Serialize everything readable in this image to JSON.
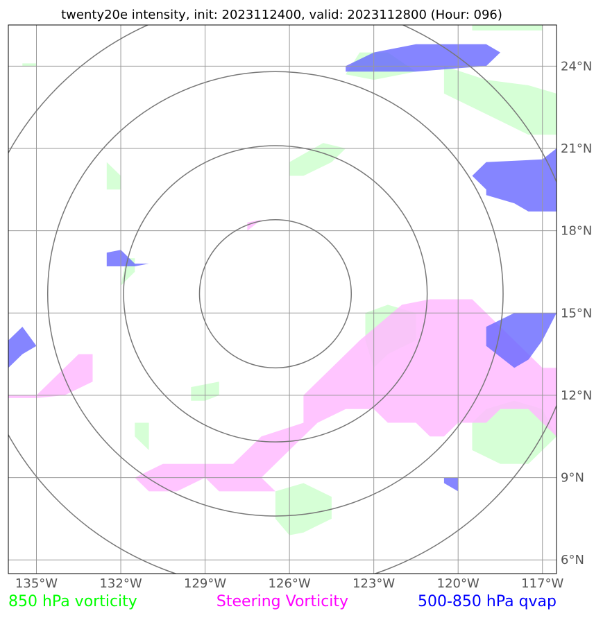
{
  "title": "twenty20e intensity, init: 2023112400, valid: 2023112800 (Hour: 096)",
  "map": {
    "lon_range": [
      -136,
      -116.5
    ],
    "lat_range": [
      5.5,
      25.5
    ],
    "center": {
      "lon": -126.5,
      "lat": 15.7
    },
    "lon_ticks": [
      {
        "value": -135,
        "label": "135°W"
      },
      {
        "value": -132,
        "label": "132°W"
      },
      {
        "value": -129,
        "label": "129°W"
      },
      {
        "value": -126,
        "label": "126°W"
      },
      {
        "value": -123,
        "label": "123°W"
      },
      {
        "value": -120,
        "label": "120°W"
      },
      {
        "value": -117,
        "label": "117°W"
      }
    ],
    "lat_ticks": [
      {
        "value": 24,
        "label": "24°N"
      },
      {
        "value": 21,
        "label": "21°N"
      },
      {
        "value": 18,
        "label": "18°N"
      },
      {
        "value": 15,
        "label": "15°N"
      },
      {
        "value": 12,
        "label": "12°N"
      },
      {
        "value": 9,
        "label": "9°N"
      },
      {
        "value": 6,
        "label": "6°N"
      }
    ],
    "range_ring_radius_deg": [
      2.7,
      5.4,
      8.1,
      10.8
    ]
  },
  "fields": {
    "vorticity_850": {
      "color": "#ccffcc",
      "polygons": [
        [
          [
            -135.5,
            24.1
          ],
          [
            -135.0,
            24.1
          ],
          [
            -135.0,
            24.0
          ],
          [
            -135.5,
            24.0
          ]
        ],
        [
          [
            -132.5,
            20.5
          ],
          [
            -132.0,
            20.0
          ],
          [
            -132.0,
            19.5
          ],
          [
            -132.5,
            19.5
          ]
        ],
        [
          [
            -131.5,
            17.0
          ],
          [
            -131.5,
            16.5
          ],
          [
            -132.0,
            16.0
          ],
          [
            -131.8,
            17.0
          ]
        ],
        [
          [
            -126.0,
            20.5
          ],
          [
            -124.8,
            21.2
          ],
          [
            -124.0,
            21.0
          ],
          [
            -124.5,
            20.5
          ],
          [
            -125.5,
            20.0
          ],
          [
            -126.0,
            20.0
          ]
        ],
        [
          [
            -123.3,
            15.0
          ],
          [
            -122.5,
            15.3
          ],
          [
            -121.5,
            15.0
          ],
          [
            -121.5,
            14.0
          ],
          [
            -122.5,
            13.5
          ],
          [
            -123.0,
            13.0
          ],
          [
            -123.3,
            14.0
          ]
        ],
        [
          [
            -129.5,
            12.3
          ],
          [
            -128.5,
            12.5
          ],
          [
            -128.5,
            12.0
          ],
          [
            -129.0,
            11.8
          ],
          [
            -129.5,
            11.8
          ]
        ],
        [
          [
            -131.5,
            11.0
          ],
          [
            -131.0,
            11.0
          ],
          [
            -131.0,
            10.0
          ],
          [
            -131.5,
            10.5
          ]
        ],
        [
          [
            -126.5,
            8.5
          ],
          [
            -125.5,
            8.8
          ],
          [
            -124.5,
            8.3
          ],
          [
            -124.5,
            7.5
          ],
          [
            -125.5,
            7.0
          ],
          [
            -126.0,
            6.9
          ],
          [
            -126.5,
            7.5
          ]
        ],
        [
          [
            -119.0,
            11.5
          ],
          [
            -118.0,
            11.8
          ],
          [
            -117.0,
            11.5
          ],
          [
            -116.5,
            10.5
          ],
          [
            -117.5,
            9.5
          ],
          [
            -118.5,
            9.5
          ],
          [
            -119.5,
            10.0
          ],
          [
            -119.5,
            11.0
          ]
        ],
        [
          [
            -123.5,
            24.5
          ],
          [
            -122.5,
            24.5
          ],
          [
            -121.5,
            23.8
          ],
          [
            -123.0,
            23.5
          ],
          [
            -124.0,
            23.7
          ]
        ],
        [
          [
            -120.5,
            24.0
          ],
          [
            -119.0,
            23.5
          ],
          [
            -117.5,
            23.3
          ],
          [
            -116.5,
            23.0
          ],
          [
            -116.5,
            21.5
          ],
          [
            -117.5,
            21.5
          ],
          [
            -118.5,
            22.0
          ],
          [
            -119.5,
            22.5
          ],
          [
            -120.5,
            23.0
          ]
        ],
        [
          [
            -119.5,
            25.5
          ],
          [
            -117.0,
            25.6
          ],
          [
            -117.0,
            25.3
          ],
          [
            -119.5,
            25.3
          ]
        ]
      ]
    },
    "steering_vorticity": {
      "color": "#ffbbff",
      "polygons": [
        [
          [
            -136,
            12.0
          ],
          [
            -135.0,
            12.0
          ],
          [
            -134.0,
            13.0
          ],
          [
            -133.5,
            13.5
          ],
          [
            -133.0,
            13.5
          ],
          [
            -133.0,
            12.5
          ],
          [
            -134.0,
            12.0
          ],
          [
            -135.0,
            11.9
          ],
          [
            -136,
            11.9
          ]
        ],
        [
          [
            -127.5,
            18.3
          ],
          [
            -127.0,
            18.4
          ],
          [
            -127.5,
            18.0
          ]
        ],
        [
          [
            -122.0,
            15.3
          ],
          [
            -121.0,
            15.5
          ],
          [
            -119.5,
            15.5
          ],
          [
            -118.5,
            14.5
          ],
          [
            -117.0,
            13.0
          ],
          [
            -116.5,
            13.0
          ],
          [
            -116.5,
            10.5
          ],
          [
            -117.0,
            11.0
          ],
          [
            -117.5,
            11.5
          ],
          [
            -118.5,
            11.5
          ],
          [
            -119.0,
            11.0
          ],
          [
            -120.0,
            11.0
          ],
          [
            -120.5,
            10.5
          ],
          [
            -121.0,
            10.5
          ],
          [
            -121.5,
            11.0
          ],
          [
            -122.5,
            11.0
          ],
          [
            -123.0,
            11.5
          ],
          [
            -124.0,
            11.5
          ],
          [
            -125.0,
            11.0
          ],
          [
            -126.0,
            10.0
          ],
          [
            -127.0,
            9.0
          ],
          [
            -126.5,
            8.5
          ],
          [
            -127.5,
            8.5
          ],
          [
            -128.5,
            8.5
          ],
          [
            -129.0,
            9.0
          ],
          [
            -130.0,
            8.5
          ],
          [
            -131.0,
            8.5
          ],
          [
            -131.5,
            9.0
          ],
          [
            -130.5,
            9.5
          ],
          [
            -128.0,
            9.5
          ],
          [
            -127.0,
            10.5
          ],
          [
            -125.5,
            11.0
          ],
          [
            -125.5,
            12.0
          ],
          [
            -124.5,
            13.0
          ],
          [
            -123.5,
            14.0
          ]
        ]
      ]
    },
    "qvap_500_850": {
      "color": "#6666ff",
      "polygons": [
        [
          [
            -124.0,
            24.0
          ],
          [
            -123.0,
            24.5
          ],
          [
            -121.5,
            24.8
          ],
          [
            -119.0,
            24.8
          ],
          [
            -118.5,
            24.5
          ],
          [
            -119.0,
            24.0
          ],
          [
            -121.5,
            23.8
          ],
          [
            -123.0,
            23.8
          ],
          [
            -124.0,
            23.8
          ]
        ],
        [
          [
            -119.5,
            20.0
          ],
          [
            -119.0,
            20.5
          ],
          [
            -117.0,
            20.6
          ],
          [
            -116.5,
            21.0
          ],
          [
            -116.5,
            18.7
          ],
          [
            -117.5,
            18.7
          ],
          [
            -118.0,
            19.0
          ],
          [
            -119.0,
            19.3
          ],
          [
            -119.0,
            19.5
          ]
        ],
        [
          [
            -132.5,
            17.2
          ],
          [
            -132.0,
            17.3
          ],
          [
            -131.5,
            16.8
          ],
          [
            -131.0,
            16.8
          ],
          [
            -131.5,
            16.7
          ],
          [
            -132.5,
            16.7
          ]
        ],
        [
          [
            -136,
            14.0
          ],
          [
            -135.5,
            14.5
          ],
          [
            -135.0,
            13.8
          ],
          [
            -135.5,
            13.5
          ],
          [
            -136,
            13.0
          ]
        ],
        [
          [
            -119.0,
            14.5
          ],
          [
            -118.0,
            15.0
          ],
          [
            -116.5,
            15.0
          ],
          [
            -117.0,
            14.0
          ],
          [
            -117.5,
            13.3
          ],
          [
            -118.0,
            13.0
          ],
          [
            -119.0,
            13.8
          ]
        ],
        [
          [
            -120.5,
            9.0
          ],
          [
            -120.0,
            9.0
          ],
          [
            -120.0,
            8.5
          ],
          [
            -120.5,
            8.8
          ]
        ]
      ]
    }
  },
  "legend": [
    {
      "label": "850 hPa vorticity",
      "color": "#00ff00"
    },
    {
      "label": "Steering Vorticity",
      "color": "#ff00ff"
    },
    {
      "label": "500-850 hPa qvap",
      "color": "#0000ff"
    }
  ]
}
